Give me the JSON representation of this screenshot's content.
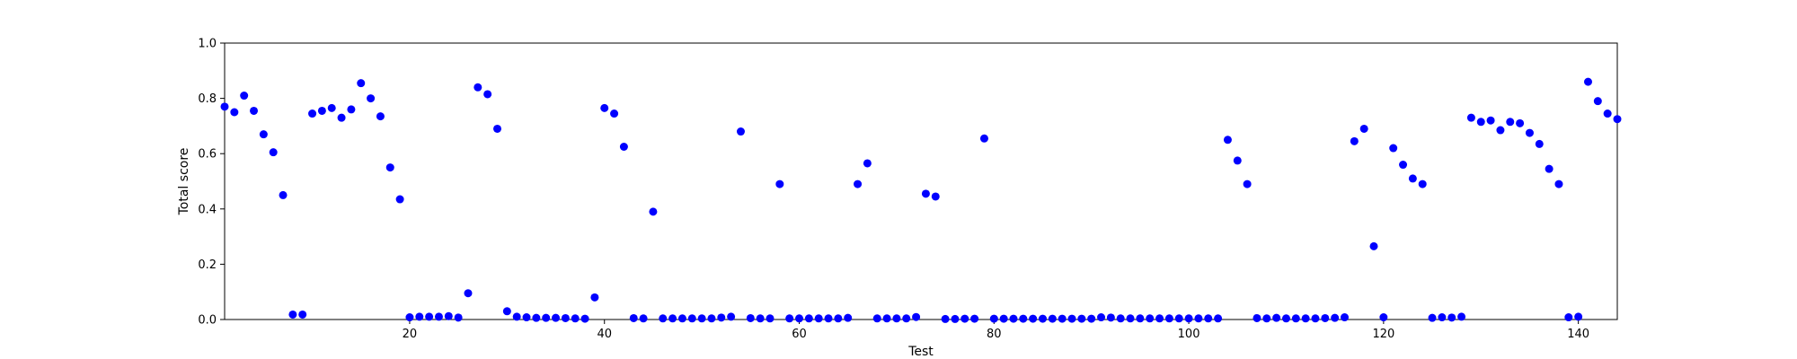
{
  "chart_data": {
    "type": "scatter",
    "title": "",
    "xlabel": "Test",
    "ylabel": "Total score",
    "xlim": [
      1,
      144
    ],
    "ylim": [
      0.0,
      1.0
    ],
    "xticks": [
      20,
      40,
      60,
      80,
      100,
      120,
      140
    ],
    "yticks": [
      0.0,
      0.2,
      0.4,
      0.6,
      0.8,
      1.0
    ],
    "xtick_labels": [
      "20",
      "40",
      "60",
      "80",
      "100",
      "120",
      "140"
    ],
    "ytick_labels": [
      "0.0",
      "0.2",
      "0.4",
      "0.6",
      "0.8",
      "1.0"
    ],
    "grid": false,
    "legend": "none",
    "marker_color": "#0000ff",
    "series": [
      {
        "x": [
          1,
          2,
          3,
          4,
          5,
          6,
          7,
          8,
          9,
          10,
          11,
          12,
          13,
          14,
          15,
          16,
          17,
          18,
          19,
          20,
          21,
          22,
          23,
          24,
          25,
          26,
          27,
          28,
          29,
          30,
          31,
          32,
          33,
          34,
          35,
          36,
          37,
          38,
          39,
          40,
          41,
          42,
          43,
          44,
          45,
          46,
          47,
          48,
          49,
          50,
          51,
          52,
          53,
          54,
          55,
          56,
          57,
          58,
          59,
          60,
          61,
          62,
          63,
          64,
          65,
          66,
          67,
          68,
          69,
          70,
          71,
          72,
          73,
          74,
          75,
          76,
          77,
          78,
          79,
          80,
          81,
          82,
          83,
          84,
          85,
          86,
          87,
          88,
          89,
          90,
          91,
          92,
          93,
          94,
          95,
          96,
          97,
          98,
          99,
          100,
          101,
          102,
          103,
          104,
          105,
          106,
          107,
          108,
          109,
          110,
          111,
          112,
          113,
          114,
          115,
          116,
          117,
          118,
          119,
          120,
          121,
          122,
          123,
          124,
          125,
          126,
          127,
          128,
          129,
          130,
          131,
          132,
          133,
          134,
          135,
          136,
          137,
          138,
          139,
          140,
          141,
          142,
          143,
          144
        ],
        "y": [
          0.77,
          0.75,
          0.81,
          0.755,
          0.67,
          0.605,
          0.45,
          0.018,
          0.018,
          0.745,
          0.755,
          0.765,
          0.73,
          0.76,
          0.855,
          0.8,
          0.735,
          0.55,
          0.435,
          0.008,
          0.01,
          0.01,
          0.01,
          0.012,
          0.007,
          0.095,
          0.84,
          0.815,
          0.69,
          0.03,
          0.01,
          0.008,
          0.006,
          0.006,
          0.006,
          0.005,
          0.004,
          0.003,
          0.08,
          0.765,
          0.745,
          0.625,
          0.005,
          0.004,
          0.39,
          0.004,
          0.004,
          0.004,
          0.004,
          0.004,
          0.004,
          0.007,
          0.01,
          0.68,
          0.005,
          0.004,
          0.004,
          0.49,
          0.004,
          0.004,
          0.004,
          0.004,
          0.004,
          0.004,
          0.006,
          0.49,
          0.565,
          0.004,
          0.004,
          0.004,
          0.004,
          0.009,
          0.455,
          0.445,
          0.002,
          0.002,
          0.003,
          0.003,
          0.655,
          0.003,
          0.003,
          0.003,
          0.003,
          0.003,
          0.003,
          0.003,
          0.003,
          0.003,
          0.003,
          0.003,
          0.008,
          0.007,
          0.004,
          0.004,
          0.004,
          0.004,
          0.004,
          0.004,
          0.004,
          0.004,
          0.004,
          0.004,
          0.004,
          0.65,
          0.575,
          0.49,
          0.005,
          0.004,
          0.006,
          0.004,
          0.004,
          0.004,
          0.004,
          0.005,
          0.006,
          0.008,
          0.645,
          0.69,
          0.265,
          0.008,
          0.62,
          0.56,
          0.51,
          0.49,
          0.006,
          0.008,
          0.007,
          0.01,
          0.73,
          0.715,
          0.72,
          0.685,
          0.715,
          0.71,
          0.675,
          0.635,
          0.545,
          0.49,
          0.008,
          0.01,
          0.86,
          0.79,
          0.745,
          0.725
        ]
      }
    ]
  }
}
